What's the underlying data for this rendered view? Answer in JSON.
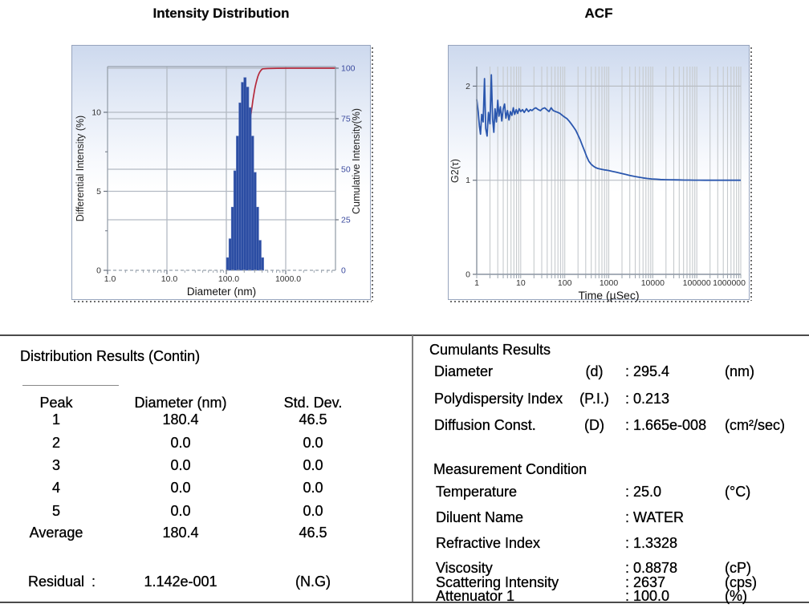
{
  "titles": {
    "left_chart": "Intensity Distribution",
    "right_chart": "ACF"
  },
  "chart_data": [
    {
      "id": "intensity_distribution",
      "type": "bar",
      "title": "Intensity Distribution",
      "xlabel": "Diameter (nm)",
      "ylabel_left": "Differential Intensity (%)",
      "ylabel_right": "Cumulative Intensity(%)",
      "x_scale": "log",
      "xlim": [
        1.0,
        6900
      ],
      "x_ticks": [
        "1.0",
        "10.0",
        "100.0",
        "1000.0"
      ],
      "ylim_left": [
        0,
        12.9
      ],
      "y_ticks_left": [
        "0",
        "5",
        "10"
      ],
      "ylim_right": [
        0,
        100
      ],
      "y_ticks_right": [
        "0",
        "25",
        "50",
        "75",
        "100"
      ],
      "grid": true,
      "bar_color": "#2b4da3",
      "line_color": "#b52a3c",
      "bars_diameter_nm": [
        105,
        116,
        127,
        140,
        155,
        170,
        187,
        206,
        227,
        251,
        276,
        304,
        335,
        369,
        406
      ],
      "bars_differential_pct": [
        0.8,
        2.0,
        4.0,
        6.3,
        8.5,
        10.6,
        11.9,
        12.2,
        11.6,
        10.3,
        8.5,
        6.2,
        4.0,
        1.9,
        0.8
      ],
      "cumulative_pct": [
        0.8,
        2.8,
        6.8,
        13.2,
        21.7,
        32.3,
        44.3,
        56.5,
        68.2,
        78.5,
        87.1,
        93.3,
        97.3,
        99.2,
        100.0
      ]
    },
    {
      "id": "acf",
      "type": "line",
      "title": "ACF",
      "xlabel": "Time (µSec)",
      "ylabel": "G2(τ)",
      "x_scale": "log",
      "xlim": [
        1,
        1000000
      ],
      "x_ticks": [
        "1",
        "10",
        "100",
        "1000",
        "10000",
        "100000",
        "1000000"
      ],
      "ylim": [
        0,
        2.2
      ],
      "y_ticks": [
        "0",
        "1",
        "2"
      ],
      "grid": true,
      "line_color": "#2b57ae",
      "t_usec": [
        1.0,
        1.08,
        1.15,
        1.22,
        1.3,
        1.4,
        1.5,
        1.6,
        1.72,
        1.85,
        2.0,
        2.15,
        2.3,
        2.45,
        2.6,
        2.8,
        3.0,
        3.2,
        3.45,
        3.7,
        4.0,
        4.3,
        4.6,
        5.0,
        5.4,
        5.8,
        6.3,
        6.8,
        7.3,
        7.9,
        8.5,
        9.2,
        10.0,
        11,
        12,
        13.5,
        15,
        16.5,
        18,
        20,
        22,
        25,
        28,
        31,
        35,
        39,
        44,
        49,
        55,
        62,
        70,
        78,
        88,
        100,
        112,
        125,
        140,
        158,
        178,
        200,
        224,
        251,
        282,
        316,
        355,
        398,
        447,
        501,
        562,
        631,
        708,
        794,
        891,
        1000,
        1200,
        1500,
        1900,
        2400,
        3000,
        3800,
        4800,
        6000,
        7500,
        9500,
        12000,
        15000,
        19000,
        24000,
        30000,
        40000,
        52000,
        68000,
        88000,
        115000,
        150000,
        200000,
        270000,
        360000,
        480000,
        640000,
        850000,
        1000000
      ],
      "g2": [
        1.86,
        1.73,
        1.58,
        1.49,
        1.7,
        1.62,
        2.08,
        1.55,
        1.47,
        1.72,
        1.6,
        2.12,
        1.65,
        1.51,
        1.76,
        1.62,
        1.85,
        1.68,
        1.78,
        1.63,
        1.76,
        1.81,
        1.66,
        1.74,
        1.64,
        1.73,
        1.69,
        1.77,
        1.7,
        1.75,
        1.71,
        1.76,
        1.73,
        1.75,
        1.72,
        1.76,
        1.73,
        1.75,
        1.74,
        1.76,
        1.77,
        1.75,
        1.74,
        1.76,
        1.77,
        1.75,
        1.73,
        1.77,
        1.74,
        1.73,
        1.72,
        1.71,
        1.69,
        1.67,
        1.655,
        1.63,
        1.6,
        1.565,
        1.53,
        1.48,
        1.43,
        1.37,
        1.31,
        1.25,
        1.2,
        1.17,
        1.15,
        1.135,
        1.125,
        1.12,
        1.115,
        1.11,
        1.107,
        1.103,
        1.095,
        1.085,
        1.073,
        1.062,
        1.051,
        1.041,
        1.032,
        1.025,
        1.019,
        1.014,
        1.011,
        1.008,
        1.006,
        1.005,
        1.004,
        1.003,
        1.002,
        1.002,
        1.001,
        1.001,
        1.0,
        1.0,
        1.0,
        1.0,
        1.0,
        1.0,
        1.0,
        1.0
      ]
    }
  ],
  "distribution_results": {
    "title": "Distribution Results (Contin)",
    "columns": [
      "Peak",
      "Diameter (nm)",
      "Std. Dev."
    ],
    "rows": [
      [
        "1",
        "180.4",
        "46.5"
      ],
      [
        "2",
        "0.0",
        "0.0"
      ],
      [
        "3",
        "0.0",
        "0.0"
      ],
      [
        "4",
        "0.0",
        "0.0"
      ],
      [
        "5",
        "0.0",
        "0.0"
      ],
      [
        "Average",
        "180.4",
        "46.5"
      ]
    ],
    "residual": {
      "label": "Residual",
      "colon": ":",
      "value": "1.142e-001",
      "flag": "(N.G)"
    }
  },
  "cumulants_results": {
    "title": "Cumulants Results",
    "rows": [
      {
        "label": "Diameter",
        "symbol": "(d)",
        "value": ": 295.4",
        "unit": "(nm)"
      },
      {
        "label": "Polydispersity Index",
        "symbol": "(P.I.)",
        "value": ": 0.213",
        "unit": ""
      },
      {
        "label": "Diffusion Const.",
        "symbol": "(D)",
        "value": ": 1.665e-008",
        "unit": "(cm²/sec)"
      }
    ]
  },
  "measurement_condition": {
    "title": "Measurement Condition",
    "rows": [
      {
        "label": "Temperature",
        "value": ": 25.0",
        "unit": "(°C)"
      },
      {
        "label": "Diluent Name",
        "value": ": WATER",
        "unit": ""
      },
      {
        "label": "Refractive Index",
        "value": ": 1.3328",
        "unit": ""
      },
      {
        "label": "Viscosity",
        "value": ": 0.8878",
        "unit": "(cP)"
      },
      {
        "label": "Scattering Intensity",
        "value": ": 2637",
        "unit": "(cps)"
      },
      {
        "label": "Attenuator 1",
        "value": ": 100.0",
        "unit": "(%)"
      }
    ]
  }
}
